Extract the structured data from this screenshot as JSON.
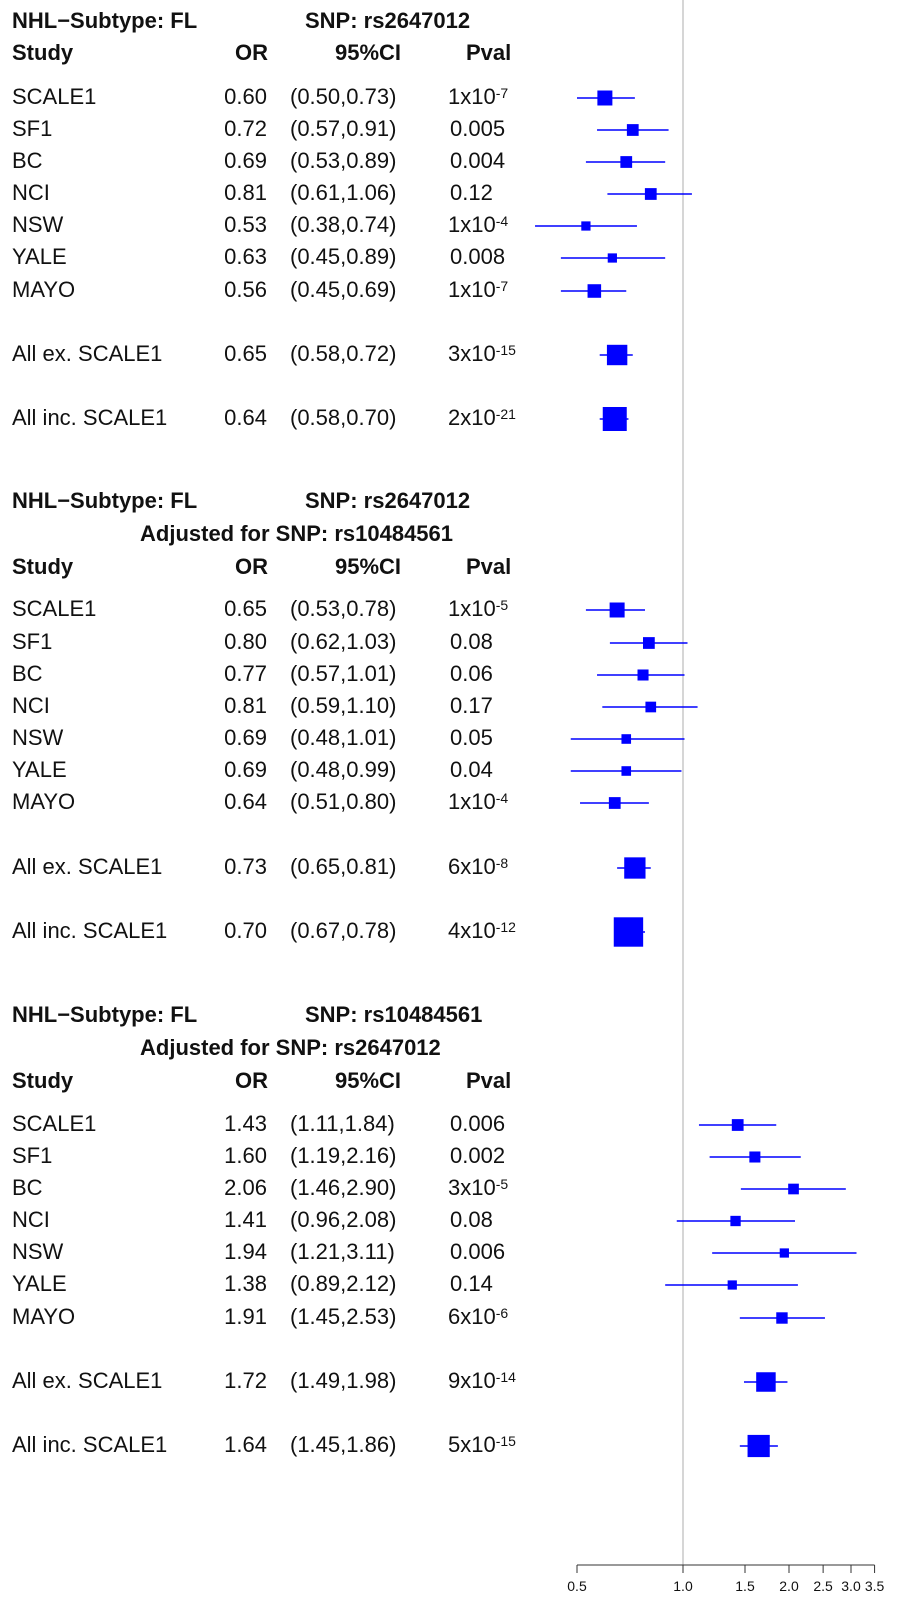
{
  "chart_data": {
    "type": "forest",
    "x_scale": "log",
    "xlim": [
      0.5,
      3.5
    ],
    "reference_line": 1.0,
    "x_ticks": [
      0.5,
      1.0,
      1.5,
      2.0,
      2.5,
      3.0,
      3.5
    ],
    "x_tick_labels": [
      "0.5",
      "1.0",
      "1.5",
      "2.0",
      "2.5",
      "3.0",
      "3.5"
    ],
    "column_headers": {
      "study": "Study",
      "or": "OR",
      "ci": "95%CI",
      "pval": "Pval"
    },
    "color": "#0000ff",
    "panels": [
      {
        "title_left": "NHL−Subtype: FL",
        "title_right": "SNP: rs2647012",
        "subtitle": "",
        "rows": [
          {
            "study": "SCALE1",
            "or": "0.60",
            "ci": "(0.50,0.73)",
            "or_value": 0.6,
            "lo": 0.5,
            "hi": 0.73,
            "p_base": "1x10",
            "p_exp": "-7",
            "weight": 0.5
          },
          {
            "study": "SF1",
            "or": "0.72",
            "ci": "(0.57,0.91)",
            "or_value": 0.72,
            "lo": 0.57,
            "hi": 0.91,
            "p_base": "0.005",
            "p_exp": "",
            "weight": 0.32
          },
          {
            "study": "BC",
            "or": "0.69",
            "ci": "(0.53,0.89)",
            "or_value": 0.69,
            "lo": 0.53,
            "hi": 0.89,
            "p_base": "0.004",
            "p_exp": "",
            "weight": 0.32
          },
          {
            "study": "NCI",
            "or": "0.81",
            "ci": "(0.61,1.06)",
            "or_value": 0.81,
            "lo": 0.61,
            "hi": 1.06,
            "p_base": "0.12",
            "p_exp": "",
            "weight": 0.32
          },
          {
            "study": "NSW",
            "or": "0.53",
            "ci": "(0.38,0.74)",
            "or_value": 0.53,
            "lo": 0.38,
            "hi": 0.74,
            "p_base": "1x10",
            "p_exp": "-4",
            "weight": 0.18
          },
          {
            "study": "YALE",
            "or": "0.63",
            "ci": "(0.45,0.89)",
            "or_value": 0.63,
            "lo": 0.45,
            "hi": 0.89,
            "p_base": "0.008",
            "p_exp": "",
            "weight": 0.18
          },
          {
            "study": "MAYO",
            "or": "0.56",
            "ci": "(0.45,0.69)",
            "or_value": 0.56,
            "lo": 0.45,
            "hi": 0.69,
            "p_base": "1x10",
            "p_exp": "-7",
            "weight": 0.42
          },
          {
            "study": "All ex. SCALE1",
            "or": "0.65",
            "ci": "(0.58,0.72)",
            "or_value": 0.65,
            "lo": 0.58,
            "hi": 0.72,
            "p_base": "3x10",
            "p_exp": "-15",
            "weight": 0.8
          },
          {
            "study": "All inc. SCALE1",
            "or": "0.64",
            "ci": "(0.58,0.70)",
            "or_value": 0.64,
            "lo": 0.58,
            "hi": 0.7,
            "p_base": "2x10",
            "p_exp": "-21",
            "weight": 1.0
          }
        ]
      },
      {
        "title_left": "NHL−Subtype: FL",
        "title_right": "SNP:  rs2647012",
        "subtitle": "Adjusted for SNP: rs10484561",
        "rows": [
          {
            "study": "SCALE1",
            "or": "0.65",
            "ci": "(0.53,0.78)",
            "or_value": 0.65,
            "lo": 0.53,
            "hi": 0.78,
            "p_base": "1x10",
            "p_exp": "-5",
            "weight": 0.5
          },
          {
            "study": "SF1",
            "or": "0.80",
            "ci": "(0.62,1.03)",
            "or_value": 0.8,
            "lo": 0.62,
            "hi": 1.03,
            "p_base": "0.08",
            "p_exp": "",
            "weight": 0.32
          },
          {
            "study": "BC",
            "or": "0.77",
            "ci": "(0.57,1.01)",
            "or_value": 0.77,
            "lo": 0.57,
            "hi": 1.01,
            "p_base": "0.06",
            "p_exp": "",
            "weight": 0.28
          },
          {
            "study": "NCI",
            "or": "0.81",
            "ci": "(0.59,1.10)",
            "or_value": 0.81,
            "lo": 0.59,
            "hi": 1.1,
            "p_base": "0.17",
            "p_exp": "",
            "weight": 0.26
          },
          {
            "study": "NSW",
            "or": "0.69",
            "ci": "(0.48,1.01)",
            "or_value": 0.69,
            "lo": 0.48,
            "hi": 1.01,
            "p_base": "0.05",
            "p_exp": "",
            "weight": 0.2
          },
          {
            "study": "YALE",
            "or": "0.69",
            "ci": "(0.48,0.99)",
            "or_value": 0.69,
            "lo": 0.48,
            "hi": 0.99,
            "p_base": "0.04",
            "p_exp": "",
            "weight": 0.2
          },
          {
            "study": "MAYO",
            "or": "0.64",
            "ci": "(0.51,0.80)",
            "or_value": 0.64,
            "lo": 0.51,
            "hi": 0.8,
            "p_base": "1x10",
            "p_exp": "-4",
            "weight": 0.32
          },
          {
            "study": "All ex. SCALE1",
            "or": "0.73",
            "ci": "(0.65,0.81)",
            "or_value": 0.73,
            "lo": 0.65,
            "hi": 0.81,
            "p_base": "6x10",
            "p_exp": "-8",
            "weight": 0.85
          },
          {
            "study": "All inc. SCALE1",
            "or": "0.70",
            "ci": "(0.67,0.78)",
            "or_value": 0.7,
            "lo": 0.67,
            "hi": 0.78,
            "p_base": "4x10",
            "p_exp": "-12",
            "weight": 1.3
          }
        ]
      },
      {
        "title_left": "NHL−Subtype: FL",
        "title_right": "SNP: rs10484561",
        "subtitle": "Adjusted for SNP: rs2647012",
        "rows": [
          {
            "study": "SCALE1",
            "or": "1.43",
            "ci": "(1.11,1.84)",
            "or_value": 1.43,
            "lo": 1.11,
            "hi": 1.84,
            "p_base": "0.006",
            "p_exp": "",
            "weight": 0.32
          },
          {
            "study": "SF1",
            "or": "1.60",
            "ci": "(1.19,2.16)",
            "or_value": 1.6,
            "lo": 1.19,
            "hi": 2.16,
            "p_base": "0.002",
            "p_exp": "",
            "weight": 0.28
          },
          {
            "study": "BC",
            "or": "2.06",
            "ci": "(1.46,2.90)",
            "or_value": 2.06,
            "lo": 1.46,
            "hi": 2.9,
            "p_base": "3x10",
            "p_exp": "-5",
            "weight": 0.26
          },
          {
            "study": "NCI",
            "or": "1.41",
            "ci": "(0.96,2.08)",
            "or_value": 1.41,
            "lo": 0.96,
            "hi": 2.08,
            "p_base": "0.08",
            "p_exp": "",
            "weight": 0.24
          },
          {
            "study": "NSW",
            "or": "1.94",
            "ci": "(1.21,3.11)",
            "or_value": 1.94,
            "lo": 1.21,
            "hi": 3.11,
            "p_base": "0.006",
            "p_exp": "",
            "weight": 0.18
          },
          {
            "study": "YALE",
            "or": "1.38",
            "ci": "(0.89,2.12)",
            "or_value": 1.38,
            "lo": 0.89,
            "hi": 2.12,
            "p_base": "0.14",
            "p_exp": "",
            "weight": 0.18
          },
          {
            "study": "MAYO",
            "or": "1.91",
            "ci": "(1.45,2.53)",
            "or_value": 1.91,
            "lo": 1.45,
            "hi": 2.53,
            "p_base": "6x10",
            "p_exp": "-6",
            "weight": 0.3
          },
          {
            "study": "All ex. SCALE1",
            "or": "1.72",
            "ci": "(1.49,1.98)",
            "or_value": 1.72,
            "lo": 1.49,
            "hi": 1.98,
            "p_base": "9x10",
            "p_exp": "-14",
            "weight": 0.75
          },
          {
            "study": "All inc. SCALE1",
            "or": "1.64",
            "ci": "(1.45,1.86)",
            "or_value": 1.64,
            "lo": 1.45,
            "hi": 1.86,
            "p_base": "5x10",
            "p_exp": "-15",
            "weight": 0.9
          }
        ]
      }
    ]
  }
}
